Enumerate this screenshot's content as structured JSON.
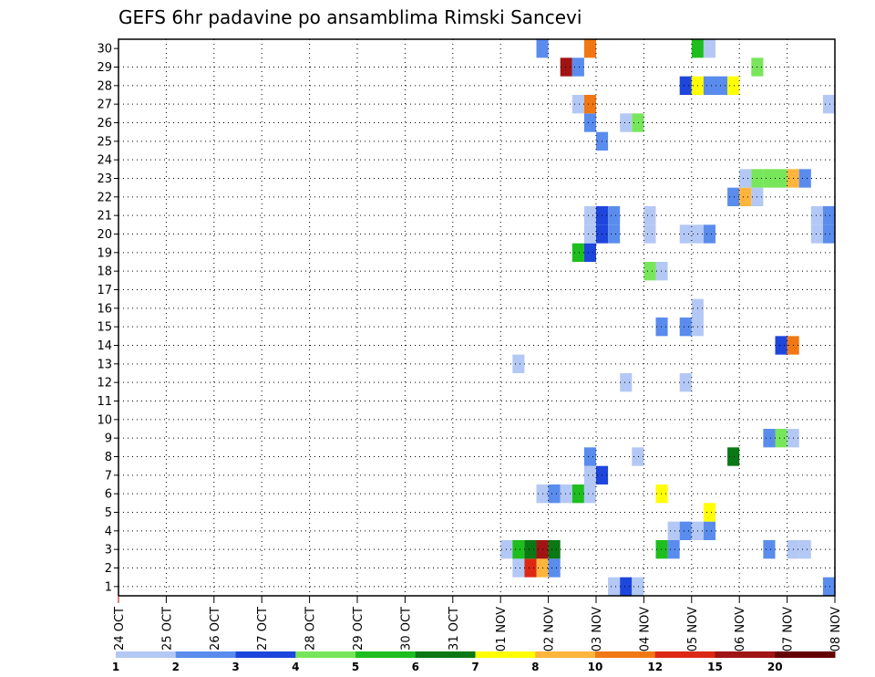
{
  "chart_data": {
    "type": "heatmap",
    "title": "GEFS 6hr padavine po ansamblima Rimski Sancevi",
    "xlabel": "",
    "ylabel": "",
    "x_tick_labels": [
      "24 OCT",
      "25 OCT",
      "26 OCT",
      "27 OCT",
      "28 OCT",
      "29 OCT",
      "30 OCT",
      "31 OCT",
      "01 NOV",
      "02 NOV",
      "03 NOV",
      "04 NOV",
      "05 NOV",
      "06 NOV",
      "07 NOV",
      "08 NOV"
    ],
    "y_tick_labels": [
      "1",
      "2",
      "3",
      "4",
      "5",
      "6",
      "7",
      "8",
      "9",
      "10",
      "11",
      "12",
      "13",
      "14",
      "15",
      "16",
      "17",
      "18",
      "19",
      "20",
      "21",
      "22",
      "23",
      "24",
      "25",
      "26",
      "27",
      "28",
      "29",
      "30"
    ],
    "x_unit": "days since 24 OCT 00Z (6-hour steps)",
    "xlim": [
      0,
      15
    ],
    "ylim": [
      0.5,
      30.5
    ],
    "grid": true,
    "colorbar": {
      "position": "bottom",
      "boundaries": [
        1,
        2,
        3,
        4,
        5,
        6,
        7,
        8,
        10,
        12,
        15,
        20
      ],
      "labels": [
        "1",
        "2",
        "3",
        "4",
        "5",
        "6",
        "7",
        "8",
        "10",
        "12",
        "15",
        "20"
      ],
      "colors": [
        "#b4c8f5",
        "#5a8ced",
        "#1e46dc",
        "#78e65a",
        "#1ebe1e",
        "#0a7814",
        "#ffff00",
        "#ffb43c",
        "#f07814",
        "#dc2814",
        "#a01414",
        "#640000"
      ]
    },
    "cells": [
      {
        "member": 1,
        "day": 10.5,
        "class": 1
      },
      {
        "member": 1,
        "day": 10.75,
        "class": 3
      },
      {
        "member": 1,
        "day": 11.0,
        "class": 1
      },
      {
        "member": 1,
        "day": 15.0,
        "class": 2
      },
      {
        "member": 2,
        "day": 8.5,
        "class": 1
      },
      {
        "member": 2,
        "day": 8.75,
        "class": 10
      },
      {
        "member": 2,
        "day": 9.0,
        "class": 8
      },
      {
        "member": 2,
        "day": 9.25,
        "class": 2
      },
      {
        "member": 3,
        "day": 8.25,
        "class": 1
      },
      {
        "member": 3,
        "day": 8.5,
        "class": 5
      },
      {
        "member": 3,
        "day": 8.75,
        "class": 6
      },
      {
        "member": 3,
        "day": 9.0,
        "class": 11
      },
      {
        "member": 3,
        "day": 9.25,
        "class": 6
      },
      {
        "member": 3,
        "day": 11.5,
        "class": 5
      },
      {
        "member": 3,
        "day": 11.75,
        "class": 2
      },
      {
        "member": 3,
        "day": 13.75,
        "class": 2
      },
      {
        "member": 3,
        "day": 14.25,
        "class": 1
      },
      {
        "member": 3,
        "day": 14.5,
        "class": 1
      },
      {
        "member": 4,
        "day": 11.75,
        "class": 1
      },
      {
        "member": 4,
        "day": 12.0,
        "class": 2
      },
      {
        "member": 4,
        "day": 12.25,
        "class": 1
      },
      {
        "member": 4,
        "day": 12.5,
        "class": 2
      },
      {
        "member": 5,
        "day": 12.5,
        "class": 7
      },
      {
        "member": 6,
        "day": 9.0,
        "class": 1
      },
      {
        "member": 6,
        "day": 9.25,
        "class": 2
      },
      {
        "member": 6,
        "day": 9.5,
        "class": 1
      },
      {
        "member": 6,
        "day": 9.75,
        "class": 5
      },
      {
        "member": 6,
        "day": 10.0,
        "class": 1
      },
      {
        "member": 6,
        "day": 11.5,
        "class": 7
      },
      {
        "member": 7,
        "day": 10.0,
        "class": 1
      },
      {
        "member": 7,
        "day": 10.25,
        "class": 3
      },
      {
        "member": 8,
        "day": 10.0,
        "class": 2
      },
      {
        "member": 8,
        "day": 11.0,
        "class": 1
      },
      {
        "member": 8,
        "day": 13.0,
        "class": 6
      },
      {
        "member": 9,
        "day": 13.75,
        "class": 2
      },
      {
        "member": 9,
        "day": 14.0,
        "class": 4
      },
      {
        "member": 9,
        "day": 14.25,
        "class": 1
      },
      {
        "member": 12,
        "day": 10.75,
        "class": 1
      },
      {
        "member": 12,
        "day": 12.0,
        "class": 1
      },
      {
        "member": 13,
        "day": 8.5,
        "class": 1
      },
      {
        "member": 14,
        "day": 14.0,
        "class": 3
      },
      {
        "member": 14,
        "day": 14.25,
        "class": 9
      },
      {
        "member": 15,
        "day": 11.5,
        "class": 2
      },
      {
        "member": 15,
        "day": 12.0,
        "class": 2
      },
      {
        "member": 15,
        "day": 12.25,
        "class": 1
      },
      {
        "member": 16,
        "day": 12.25,
        "class": 1
      },
      {
        "member": 18,
        "day": 11.25,
        "class": 4
      },
      {
        "member": 18,
        "day": 11.5,
        "class": 1
      },
      {
        "member": 19,
        "day": 9.75,
        "class": 5
      },
      {
        "member": 19,
        "day": 10.0,
        "class": 3
      },
      {
        "member": 20,
        "day": 10.0,
        "class": 1
      },
      {
        "member": 20,
        "day": 10.25,
        "class": 3
      },
      {
        "member": 20,
        "day": 10.5,
        "class": 2
      },
      {
        "member": 20,
        "day": 11.25,
        "class": 1
      },
      {
        "member": 20,
        "day": 12.0,
        "class": 1
      },
      {
        "member": 20,
        "day": 12.25,
        "class": 1
      },
      {
        "member": 20,
        "day": 12.5,
        "class": 2
      },
      {
        "member": 20,
        "day": 14.75,
        "class": 1
      },
      {
        "member": 20,
        "day": 15.0,
        "class": 2
      },
      {
        "member": 21,
        "day": 10.0,
        "class": 1
      },
      {
        "member": 21,
        "day": 10.25,
        "class": 3
      },
      {
        "member": 21,
        "day": 10.5,
        "class": 2
      },
      {
        "member": 21,
        "day": 11.25,
        "class": 1
      },
      {
        "member": 21,
        "day": 14.75,
        "class": 1
      },
      {
        "member": 21,
        "day": 15.0,
        "class": 2
      },
      {
        "member": 22,
        "day": 13.0,
        "class": 2
      },
      {
        "member": 22,
        "day": 13.25,
        "class": 8
      },
      {
        "member": 22,
        "day": 13.5,
        "class": 1
      },
      {
        "member": 23,
        "day": 13.25,
        "class": 1
      },
      {
        "member": 23,
        "day": 13.5,
        "class": 4
      },
      {
        "member": 23,
        "day": 13.75,
        "class": 4
      },
      {
        "member": 23,
        "day": 14.0,
        "class": 4
      },
      {
        "member": 23,
        "day": 14.25,
        "class": 8
      },
      {
        "member": 23,
        "day": 14.5,
        "class": 2
      },
      {
        "member": 25,
        "day": 10.25,
        "class": 2
      },
      {
        "member": 26,
        "day": 10.0,
        "class": 2
      },
      {
        "member": 26,
        "day": 10.75,
        "class": 1
      },
      {
        "member": 26,
        "day": 11.0,
        "class": 4
      },
      {
        "member": 27,
        "day": 9.75,
        "class": 1
      },
      {
        "member": 27,
        "day": 10.0,
        "class": 9
      },
      {
        "member": 27,
        "day": 15.0,
        "class": 1
      },
      {
        "member": 28,
        "day": 12.0,
        "class": 3
      },
      {
        "member": 28,
        "day": 12.25,
        "class": 7
      },
      {
        "member": 28,
        "day": 12.5,
        "class": 2
      },
      {
        "member": 28,
        "day": 12.75,
        "class": 2
      },
      {
        "member": 28,
        "day": 13.0,
        "class": 7
      },
      {
        "member": 29,
        "day": 9.5,
        "class": 11
      },
      {
        "member": 29,
        "day": 9.75,
        "class": 2
      },
      {
        "member": 29,
        "day": 13.5,
        "class": 4
      },
      {
        "member": 30,
        "day": 9.0,
        "class": 2
      },
      {
        "member": 30,
        "day": 10.0,
        "class": 9
      },
      {
        "member": 30,
        "day": 12.25,
        "class": 5
      },
      {
        "member": 30,
        "day": 12.5,
        "class": 1
      }
    ]
  }
}
